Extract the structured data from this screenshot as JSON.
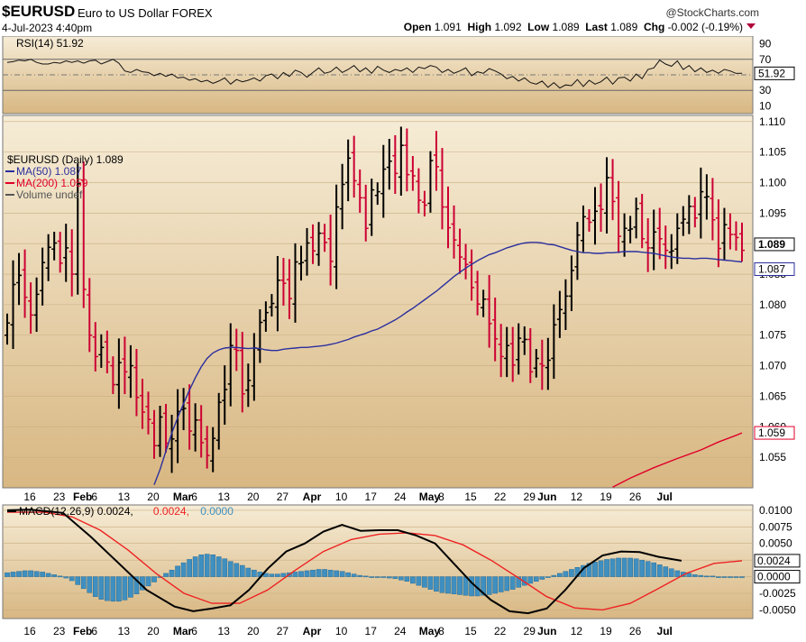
{
  "header": {
    "symbol": "$EURUSD",
    "description": "Euro to US Dollar",
    "exchange": "FOREX",
    "copyright": "@StockCharts.com",
    "date": "4-Jul-2023 4:40pm",
    "open_label": "Open",
    "open": "1.091",
    "high_label": "High",
    "high": "1.092",
    "low_label": "Low",
    "low": "1.089",
    "last_label": "Last",
    "last": "1.089",
    "chg_label": "Chg",
    "chg": "-0.002 (-0.19%)",
    "down_color": "#b0003a"
  },
  "colors": {
    "panel_top": "#f6ecd6",
    "panel_bottom": "#d8b782",
    "bull": "#000000",
    "bear": "#cc0033",
    "ma50": "#2b2f9e",
    "ma200": "#e0002a",
    "macd": "#000000",
    "signal": "#ee2222",
    "histogram": "#3f8fc0"
  },
  "chart_data": [
    {
      "panel": "rsi",
      "type": "line",
      "title": "RSI(14) 51.92",
      "last_value_tag": "51.92",
      "y_ticks": [
        "90",
        "70",
        "50",
        "30",
        "10"
      ],
      "guide_lines": [
        70,
        50,
        30
      ],
      "ylim": [
        0,
        100
      ],
      "x_index_range": [
        0,
        125
      ],
      "values": [
        66,
        67,
        69,
        68,
        70,
        66,
        64,
        64,
        66,
        65,
        68,
        66,
        68,
        65,
        68,
        69,
        64,
        67,
        70,
        65,
        55,
        53,
        57,
        54,
        53,
        49,
        52,
        48,
        51,
        46,
        47,
        43,
        45,
        41,
        43,
        39,
        42,
        46,
        38,
        44,
        41,
        43,
        46,
        42,
        49,
        51,
        45,
        53,
        48,
        56,
        53,
        47,
        53,
        59,
        52,
        54,
        60,
        53,
        57,
        62,
        54,
        59,
        52,
        61,
        56,
        53,
        57,
        55,
        59,
        53,
        60,
        58,
        62,
        60,
        53,
        57,
        52,
        55,
        59,
        49,
        54,
        52,
        58,
        55,
        51,
        45,
        48,
        42,
        46,
        40,
        38,
        42,
        34,
        40,
        33,
        37,
        36,
        44,
        35,
        43,
        38,
        41,
        47,
        38,
        46,
        47,
        42,
        51,
        45,
        57,
        59,
        69,
        64,
        61,
        68,
        57,
        62,
        54,
        59,
        53,
        56,
        52,
        57,
        55,
        51.9,
        51.92
      ]
    },
    {
      "panel": "price",
      "type": "ohlc",
      "title": "$EURUSD (Daily) 1.089",
      "legend": [
        {
          "label": "MA(50) 1.087",
          "color": "#2b2f9e"
        },
        {
          "label": "MA(200) 1.059",
          "color": "#e0002a"
        },
        {
          "label": "Volume undef",
          "color": "#555555"
        }
      ],
      "y_ticks": [
        "1.110",
        "1.105",
        "1.100",
        "1.095",
        "1.090",
        "1.085",
        "1.080",
        "1.075",
        "1.070",
        "1.065",
        "1.060",
        "1.055"
      ],
      "ylim": [
        1.05,
        1.111
      ],
      "price_tags": [
        {
          "value": 1.089,
          "text": "1.089",
          "kind": "last"
        },
        {
          "value": 1.087,
          "text": "1.087",
          "kind": "ma50"
        },
        {
          "value": 1.059,
          "text": "1.059",
          "kind": "ma200"
        }
      ],
      "x_tick_labels": [
        "16",
        "23",
        "Feb",
        "6",
        "13",
        "20",
        "Mar",
        "6",
        "13",
        "20",
        "27",
        "Apr",
        "10",
        "17",
        "24",
        "May",
        "8",
        "15",
        "22",
        "29",
        "Jun",
        "12",
        "19",
        "26",
        "Jul"
      ],
      "x_tick_index": [
        2,
        7,
        11,
        13,
        18,
        23,
        28,
        30,
        35,
        40,
        45,
        50,
        55,
        60,
        65,
        70,
        72,
        77,
        82,
        87,
        90,
        95,
        100,
        105,
        110
      ],
      "closes": [
        1.077,
        1.0833,
        1.0848,
        1.0812,
        1.0783,
        1.0817,
        1.0869,
        1.0894,
        1.0901,
        1.0868,
        1.0893,
        1.085,
        1.0998,
        1.0825,
        1.075,
        1.0715,
        1.073,
        1.0706,
        1.0669,
        1.0705,
        1.069,
        1.07,
        1.0648,
        1.0624,
        1.0612,
        1.0569,
        1.0616,
        1.0573,
        1.058,
        1.0625,
        1.063,
        1.0593,
        1.0611,
        1.0574,
        1.0553,
        1.0581,
        1.064,
        1.0661,
        1.0733,
        1.0725,
        1.0654,
        1.0676,
        1.0729,
        1.0771,
        1.0787,
        1.0802,
        1.084,
        1.0835,
        1.081,
        1.087,
        1.0869,
        1.0901,
        1.0888,
        1.0917,
        1.0902,
        1.0871,
        1.096,
        1.0997,
        1.104,
        1.1003,
        1.0975,
        1.0925,
        1.0988,
        1.0985,
        1.1022,
        1.1035,
        1.1015,
        1.1061,
        1.1013,
        1.1011,
        1.0971,
        1.0963,
        1.1036,
        1.1026,
        1.096,
        1.0926,
        1.0906,
        1.0878,
        1.0866,
        1.0828,
        1.0801,
        1.0809,
        1.0769,
        1.0744,
        1.0715,
        1.0733,
        1.0701,
        1.0745,
        1.0743,
        1.069,
        1.0712,
        1.07,
        1.0709,
        1.0767,
        1.0792,
        1.0814,
        1.0856,
        1.0914,
        1.0944,
        1.0935,
        1.0953,
        1.0956,
        1.1008,
        1.0969,
        1.0912,
        1.0925,
        1.0924,
        1.0957,
        1.0908,
        1.0893,
        1.0919,
        1.0908,
        1.0889,
        1.0888,
        1.0925,
        1.094,
        1.0961,
        1.0942,
        1.0985,
        1.0977,
        1.0939,
        1.0892,
        1.0931,
        1.0915,
        1.091,
        1.0889
      ],
      "ma50": [
        null,
        null,
        null,
        null,
        null,
        null,
        null,
        null,
        null,
        null,
        null,
        null,
        null,
        null,
        null,
        null,
        null,
        null,
        null,
        null,
        null,
        null,
        null,
        null,
        null,
        1.0505,
        1.053,
        1.056,
        1.059,
        1.0615,
        1.0638,
        1.066,
        1.068,
        1.0698,
        1.0712,
        1.0721,
        1.0726,
        1.0729,
        1.073,
        1.073,
        1.0729,
        1.0728,
        1.0729,
        1.0728,
        1.0726,
        1.0725,
        1.0725,
        1.0727,
        1.0728,
        1.0729,
        1.073,
        1.073,
        1.0731,
        1.0732,
        1.0733,
        1.0735,
        1.0737,
        1.074,
        1.0743,
        1.0747,
        1.075,
        1.0753,
        1.0757,
        1.076,
        1.0765,
        1.077,
        1.0775,
        1.0781,
        1.0788,
        1.0794,
        1.0801,
        1.0808,
        1.0815,
        1.0822,
        1.083,
        1.0838,
        1.0846,
        1.0853,
        1.086,
        1.0866,
        1.0872,
        1.0877,
        1.0882,
        1.0885,
        1.0889,
        1.0893,
        1.0896,
        1.0899,
        1.0901,
        1.0902,
        1.0902,
        1.0901,
        1.0899,
        1.0898,
        1.0895,
        1.0892,
        1.0889,
        1.0887,
        1.0885,
        1.0885,
        1.0884,
        1.0884,
        1.0885,
        1.0885,
        1.0886,
        1.0887,
        1.0887,
        1.0887,
        1.0886,
        1.0885,
        1.0884,
        1.0882,
        1.088,
        1.0878,
        1.0877,
        1.0876,
        1.0876,
        1.0875,
        1.0876,
        1.0876,
        1.0875,
        1.0874,
        1.0873,
        1.0872,
        1.0871,
        1.087
      ],
      "ma200_points": [
        [
          103,
          1.0501
        ],
        [
          106,
          1.0516
        ],
        [
          110,
          1.0533
        ],
        [
          114,
          1.0548
        ],
        [
          118,
          1.0562
        ],
        [
          121,
          1.0575
        ],
        [
          124,
          1.0586
        ],
        [
          125,
          1.059
        ]
      ]
    },
    {
      "panel": "macd",
      "type": "line",
      "title_parts": [
        {
          "text": "MACD(12,26,9) 0.0024,",
          "color": "#000000"
        },
        {
          "text": "0.0024,",
          "color": "#ee2222"
        },
        {
          "text": "0.0000",
          "color": "#3f8fc0"
        }
      ],
      "y_ticks": [
        "0.0100",
        "0.0075",
        "0.0050",
        "0.0025",
        "0.0000",
        "-0.0025",
        "-0.0050"
      ],
      "ylim": [
        -0.0063,
        0.0108
      ],
      "value_tags": [
        {
          "value": 0.0024,
          "text": "0.0024"
        },
        {
          "value": 0.0,
          "text": "0.0000"
        }
      ],
      "macd_points": [
        [
          0,
          0.01
        ],
        [
          5,
          0.0101
        ],
        [
          12,
          0.0096
        ],
        [
          18,
          0.006
        ],
        [
          24,
          0.002
        ],
        [
          30,
          -0.002
        ],
        [
          36,
          -0.0045
        ],
        [
          40,
          -0.0052
        ],
        [
          44,
          -0.0048
        ],
        [
          48,
          -0.0043
        ],
        [
          52,
          -0.002
        ],
        [
          56,
          0.0012
        ],
        [
          60,
          0.0038
        ],
        [
          64,
          0.005
        ],
        [
          68,
          0.0068
        ],
        [
          72,
          0.0078
        ],
        [
          76,
          0.0069
        ],
        [
          80,
          0.007
        ],
        [
          84,
          0.007
        ],
        [
          88,
          0.0062
        ],
        [
          92,
          0.005
        ],
        [
          96,
          0.002
        ],
        [
          100,
          -0.001
        ],
        [
          104,
          -0.0035
        ],
        [
          108,
          -0.0052
        ],
        [
          112,
          -0.0055
        ],
        [
          116,
          -0.0048
        ],
        [
          120,
          -0.002
        ],
        [
          124,
          0.0013
        ],
        [
          128,
          0.0032
        ],
        [
          132,
          0.0038
        ],
        [
          136,
          0.0037
        ],
        [
          140,
          0.003
        ],
        [
          145,
          0.0024
        ]
      ],
      "signal_points": [
        [
          0,
          0.0097
        ],
        [
          8,
          0.0097
        ],
        [
          14,
          0.009
        ],
        [
          20,
          0.007
        ],
        [
          26,
          0.004
        ],
        [
          32,
          0.0005
        ],
        [
          38,
          -0.0025
        ],
        [
          44,
          -0.004
        ],
        [
          50,
          -0.004
        ],
        [
          56,
          -0.002
        ],
        [
          62,
          0.001
        ],
        [
          68,
          0.0038
        ],
        [
          74,
          0.0056
        ],
        [
          80,
          0.0064
        ],
        [
          86,
          0.0066
        ],
        [
          92,
          0.0062
        ],
        [
          98,
          0.0048
        ],
        [
          104,
          0.0025
        ],
        [
          110,
          -0.0002
        ],
        [
          116,
          -0.003
        ],
        [
          122,
          -0.0047
        ],
        [
          128,
          -0.005
        ],
        [
          134,
          -0.004
        ],
        [
          140,
          -0.0018
        ],
        [
          146,
          0.0005
        ],
        [
          152,
          0.002
        ],
        [
          158,
          0.0024
        ]
      ],
      "histogram": [
        0.0006,
        0.0007,
        0.0008,
        0.0009,
        0.0009,
        0.0008,
        0.0007,
        0.0005,
        0.0003,
        0.0001,
        -0.0002,
        -0.0006,
        -0.0012,
        -0.0018,
        -0.0024,
        -0.003,
        -0.0034,
        -0.0036,
        -0.0037,
        -0.0037,
        -0.0035,
        -0.0031,
        -0.0026,
        -0.002,
        -0.0014,
        -0.0008,
        -0.0001,
        0.0005,
        0.001,
        0.0016,
        0.0021,
        0.0026,
        0.003,
        0.0033,
        0.0034,
        0.0033,
        0.003,
        0.0027,
        0.0023,
        0.002,
        0.0017,
        0.0013,
        0.001,
        0.0007,
        0.0005,
        0.0004,
        0.0004,
        0.0005,
        0.0006,
        0.0007,
        0.0008,
        0.0009,
        0.001,
        0.0011,
        0.0011,
        0.001,
        0.0009,
        0.0008,
        0.0006,
        0.0004,
        0.0002,
        0.0001,
        0.0,
        0.0,
        -0.0001,
        -0.0002,
        -0.0003,
        -0.0005,
        -0.0007,
        -0.001,
        -0.0013,
        -0.0016,
        -0.0019,
        -0.0022,
        -0.0024,
        -0.0025,
        -0.0026,
        -0.0027,
        -0.0028,
        -0.0029,
        -0.0029,
        -0.0028,
        -0.0027,
        -0.0025,
        -0.0023,
        -0.0021,
        -0.0019,
        -0.0016,
        -0.0013,
        -0.001,
        -0.0007,
        -0.0004,
        -0.0001,
        0.0002,
        0.0005,
        0.0008,
        0.0011,
        0.0014,
        0.0017,
        0.002,
        0.0022,
        0.0024,
        0.0026,
        0.0027,
        0.0028,
        0.0028,
        0.0028,
        0.0027,
        0.0025,
        0.0023,
        0.0021,
        0.0018,
        0.0015,
        0.0012,
        0.0009,
        0.0007,
        0.0005,
        0.0003,
        0.0002,
        0.0001,
        0.0001,
        0.0,
        0.0,
        0.0,
        0.0,
        0.0
      ],
      "x_tick_labels": [
        "16",
        "23",
        "Feb",
        "6",
        "13",
        "20",
        "Mar",
        "6",
        "13",
        "20",
        "27",
        "Apr",
        "10",
        "17",
        "24",
        "May",
        "8",
        "15",
        "22",
        "29",
        "Jun",
        "12",
        "19",
        "26",
        "Jul"
      ]
    }
  ]
}
